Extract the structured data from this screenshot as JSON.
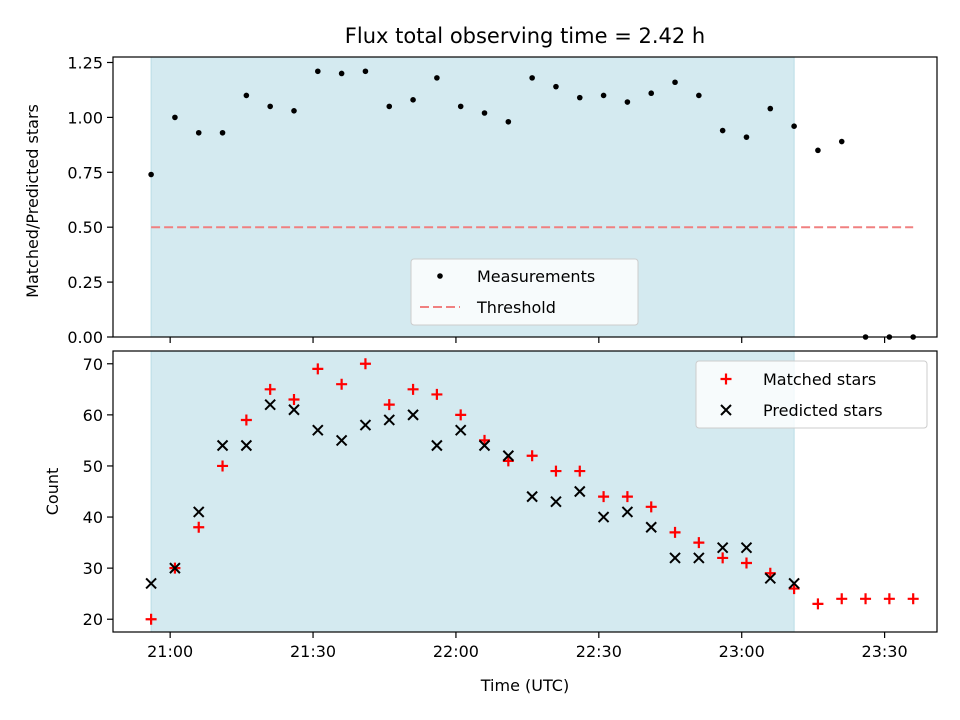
{
  "chart_data": [
    {
      "type": "scatter",
      "title": "Flux total observing time = 2.42 h",
      "ylabel": "Matched/Predicted stars",
      "xlim": [
        "20:48",
        "23:41"
      ],
      "ylim": [
        0,
        1.275
      ],
      "yticks": [
        0.0,
        0.25,
        0.5,
        0.75,
        1.0,
        1.25
      ],
      "ytick_labels": [
        "0.00",
        "0.25",
        "0.50",
        "0.75",
        "1.00",
        "1.25"
      ],
      "observing_window": [
        "20:56",
        "23:11"
      ],
      "observing_window_color": "#d4eaf0",
      "legend_position": "lower center",
      "series": [
        {
          "name": "Measurements",
          "marker": "dot",
          "color": "#000000",
          "x": [
            "20:56",
            "21:01",
            "21:06",
            "21:11",
            "21:16",
            "21:21",
            "21:26",
            "21:31",
            "21:36",
            "21:41",
            "21:46",
            "21:51",
            "21:56",
            "22:01",
            "22:06",
            "22:11",
            "22:16",
            "22:21",
            "22:26",
            "22:31",
            "22:36",
            "22:41",
            "22:46",
            "22:51",
            "22:56",
            "23:01",
            "23:06",
            "23:11",
            "23:16",
            "23:21",
            "23:26",
            "23:31",
            "23:36"
          ],
          "y": [
            0.74,
            1.0,
            0.93,
            0.93,
            1.1,
            1.05,
            1.03,
            1.21,
            1.2,
            1.21,
            1.05,
            1.08,
            1.18,
            1.05,
            1.02,
            0.98,
            1.18,
            1.14,
            1.09,
            1.1,
            1.07,
            1.11,
            1.16,
            1.1,
            0.94,
            0.91,
            1.04,
            0.96,
            0.85,
            0.89,
            0.0,
            0.0,
            0.0
          ]
        },
        {
          "name": "Threshold",
          "style": "dashed",
          "color": "#f08080",
          "x": [
            "20:56",
            "23:36"
          ],
          "y": [
            0.5,
            0.5
          ]
        }
      ]
    },
    {
      "type": "scatter",
      "xlabel": "Time (UTC)",
      "ylabel": "Count",
      "xlim": [
        "20:48",
        "23:41"
      ],
      "xticks": [
        "21:00",
        "21:30",
        "22:00",
        "22:30",
        "23:00",
        "23:30"
      ],
      "ylim": [
        17.5,
        72.5
      ],
      "yticks": [
        20,
        30,
        40,
        50,
        60,
        70
      ],
      "ytick_labels": [
        "20",
        "30",
        "40",
        "50",
        "60",
        "70"
      ],
      "observing_window": [
        "20:56",
        "23:11"
      ],
      "observing_window_color": "#d4eaf0",
      "legend_position": "upper right",
      "series": [
        {
          "name": "Matched stars",
          "marker": "plus",
          "color": "#ff0000",
          "x": [
            "20:56",
            "21:01",
            "21:06",
            "21:11",
            "21:16",
            "21:21",
            "21:26",
            "21:31",
            "21:36",
            "21:41",
            "21:46",
            "21:51",
            "21:56",
            "22:01",
            "22:06",
            "22:11",
            "22:16",
            "22:21",
            "22:26",
            "22:31",
            "22:36",
            "22:41",
            "22:46",
            "22:51",
            "22:56",
            "23:01",
            "23:06",
            "23:11",
            "23:16",
            "23:21",
            "23:26",
            "23:31",
            "23:36"
          ],
          "y": [
            20,
            30,
            38,
            50,
            59,
            65,
            63,
            69,
            66,
            70,
            62,
            65,
            64,
            60,
            55,
            51,
            52,
            49,
            49,
            44,
            44,
            42,
            37,
            35,
            32,
            31,
            29,
            26,
            23,
            24,
            24,
            24,
            24
          ]
        },
        {
          "name": "Predicted stars",
          "marker": "x",
          "color": "#000000",
          "x": [
            "20:56",
            "21:01",
            "21:06",
            "21:11",
            "21:16",
            "21:21",
            "21:26",
            "21:31",
            "21:36",
            "21:41",
            "21:46",
            "21:51",
            "21:56",
            "22:01",
            "22:06",
            "22:11",
            "22:16",
            "22:21",
            "22:26",
            "22:31",
            "22:36",
            "22:41",
            "22:46",
            "22:51",
            "22:56",
            "23:01",
            "23:06",
            "23:11"
          ],
          "y": [
            27,
            30,
            41,
            54,
            54,
            62,
            61,
            57,
            55,
            58,
            59,
            60,
            54,
            57,
            54,
            52,
            44,
            43,
            45,
            40,
            41,
            38,
            32,
            32,
            34,
            34,
            28,
            27
          ]
        }
      ]
    }
  ]
}
